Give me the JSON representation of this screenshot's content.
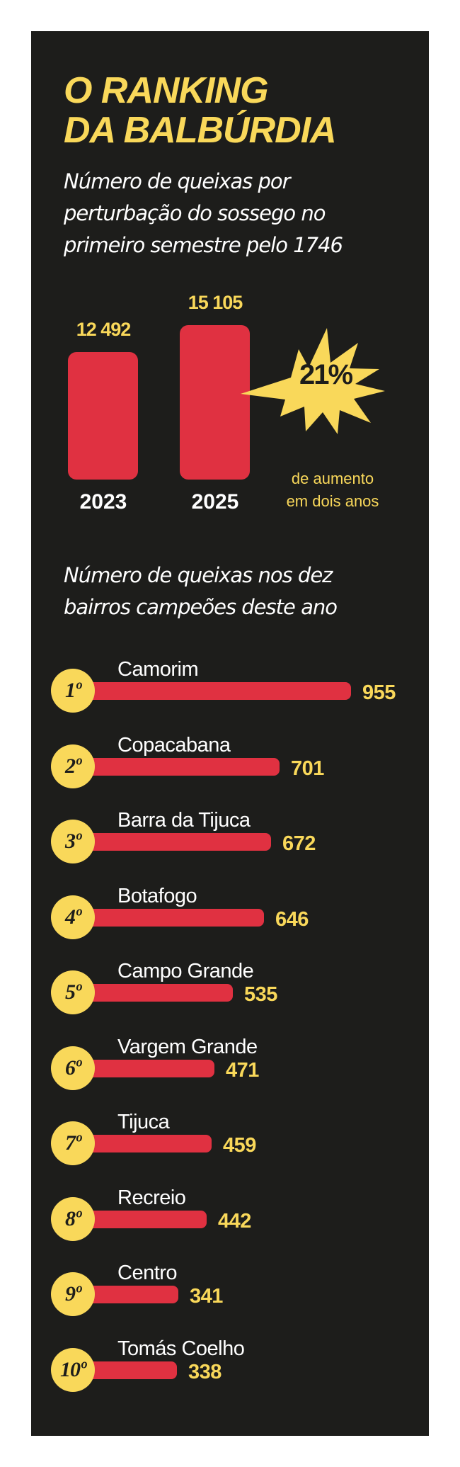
{
  "title": {
    "line1": "O RANKING",
    "line2": "DA BALBÚRDIA"
  },
  "subtitle": {
    "line1": "Número de queixas por",
    "line2": "perturbação do sossego no",
    "line3": "primeiro semestre pelo 1746"
  },
  "highlight": {
    "percent": "21%",
    "caption_line1": "de aumento",
    "caption_line2": "em dois anos"
  },
  "subtitle2": {
    "line1": "Número de queixas nos dez",
    "line2": "bairros campeões deste ano"
  },
  "colors": {
    "background": "#1d1d1b",
    "accent": "#f9d85a",
    "bar": "#e03141",
    "text": "#ffffff"
  },
  "chart_data": [
    {
      "type": "bar",
      "title": "Número de queixas por perturbação do sossego no primeiro semestre pelo 1746",
      "categories": [
        "2023",
        "2025"
      ],
      "values": [
        12492,
        15105
      ],
      "value_labels": [
        "12 492",
        "15 105"
      ],
      "ylim": [
        0,
        15105
      ]
    },
    {
      "type": "bar",
      "orientation": "horizontal",
      "title": "Número de queixas nos dez bairros campeões deste ano",
      "ranks": [
        "1º",
        "2º",
        "3º",
        "4º",
        "5º",
        "6º",
        "7º",
        "8º",
        "9º",
        "10º"
      ],
      "categories": [
        "Camorim",
        "Copacabana",
        "Barra da Tijuca",
        "Botafogo",
        "Campo Grande",
        "Vargem Grande",
        "Tijuca",
        "Recreio",
        "Centro",
        "Tomás Coelho"
      ],
      "values": [
        955,
        701,
        672,
        646,
        535,
        471,
        459,
        442,
        341,
        338
      ],
      "xlim": [
        0,
        955
      ]
    }
  ]
}
